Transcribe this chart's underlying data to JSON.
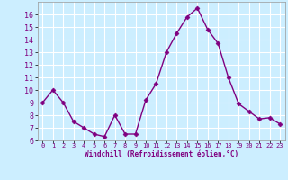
{
  "x": [
    0,
    1,
    2,
    3,
    4,
    5,
    6,
    7,
    8,
    9,
    10,
    11,
    12,
    13,
    14,
    15,
    16,
    17,
    18,
    19,
    20,
    21,
    22,
    23
  ],
  "y": [
    9,
    10,
    9,
    7.5,
    7,
    6.5,
    6.3,
    8,
    6.5,
    6.5,
    9.2,
    10.5,
    13,
    14.5,
    15.8,
    16.5,
    14.8,
    13.7,
    11,
    8.9,
    8.3,
    7.7,
    7.8,
    7.3
  ],
  "line_color": "#800080",
  "marker": "D",
  "marker_size": 2.5,
  "bg_color": "#cceeff",
  "grid_color": "#ffffff",
  "xlabel": "Windchill (Refroidissement éolien,°C)",
  "xlabel_color": "#800080",
  "tick_color": "#800080",
  "ylim": [
    6,
    17
  ],
  "xlim": [
    -0.5,
    23.5
  ],
  "yticks": [
    6,
    7,
    8,
    9,
    10,
    11,
    12,
    13,
    14,
    15,
    16
  ],
  "xticks": [
    0,
    1,
    2,
    3,
    4,
    5,
    6,
    7,
    8,
    9,
    10,
    11,
    12,
    13,
    14,
    15,
    16,
    17,
    18,
    19,
    20,
    21,
    22,
    23
  ],
  "xtick_labels": [
    "0",
    "1",
    "2",
    "3",
    "4",
    "5",
    "6",
    "7",
    "8",
    "9",
    "10",
    "11",
    "12",
    "13",
    "14",
    "15",
    "16",
    "17",
    "18",
    "19",
    "20",
    "21",
    "22",
    "23"
  ],
  "ytick_labels": [
    "6",
    "7",
    "8",
    "9",
    "10",
    "11",
    "12",
    "13",
    "14",
    "15",
    "16"
  ]
}
